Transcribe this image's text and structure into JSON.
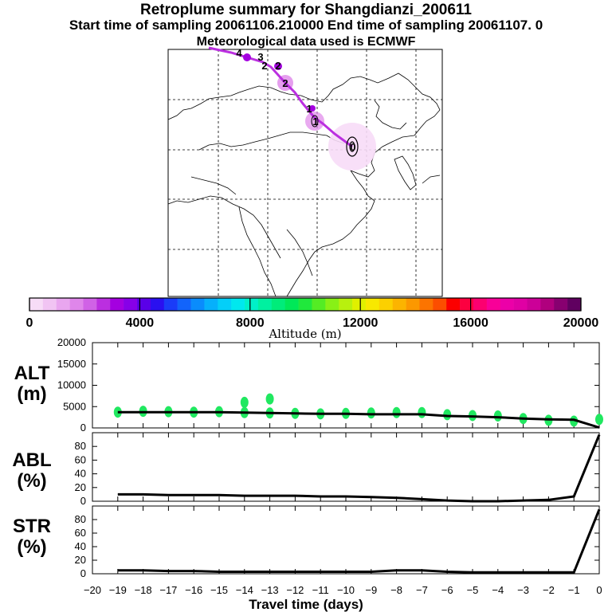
{
  "header": {
    "title": "Retroplume summary for Shangdianzi_200611",
    "sampling": "Start time of sampling 20061106.210000     End time of sampling 20061107.     0",
    "met": "Meteorological data used is ECMWF"
  },
  "map": {
    "track_labels": [
      "0",
      "1",
      "1",
      "2",
      "2",
      "3",
      "2",
      "4"
    ]
  },
  "colorbar": {
    "ticks": [
      "0",
      "4000",
      "8000",
      "12000",
      "16000",
      "20000"
    ],
    "label": "Altitude (m)",
    "colors": [
      "#f7dcf7",
      "#f1c4f3",
      "#e9a6ef",
      "#df86ea",
      "#d062e6",
      "#bb2fe0",
      "#a400e0",
      "#8700e8",
      "#5a00e8",
      "#2a10f0",
      "#1a3cf8",
      "#1264fb",
      "#0a8cfc",
      "#06b0fb",
      "#04cff8",
      "#00e8ee",
      "#00f0c8",
      "#00f0a0",
      "#00ec7a",
      "#00e858",
      "#20e83c",
      "#54ec24",
      "#88f016",
      "#b8f00e",
      "#e0f000",
      "#f8e800",
      "#fcd000",
      "#fcb400",
      "#fc9800",
      "#fc7400",
      "#fc4e00",
      "#fc0000",
      "#fc0040",
      "#fc0070",
      "#f80098",
      "#ec00a8",
      "#e000a4",
      "#cc0098",
      "#b0007e",
      "#880070",
      "#600060"
    ]
  },
  "chart_data": [
    {
      "type": "line",
      "panel": "ALT",
      "ylabel": "ALT\n(m)",
      "ylabel_lines": [
        "ALT",
        "(m)"
      ],
      "ylim": [
        0,
        20000
      ],
      "yticks": [
        "20000",
        "15000",
        "10000",
        "5000",
        "0"
      ],
      "ytick_values": [
        20000,
        15000,
        10000,
        5000,
        0
      ],
      "xlim": [
        -20,
        0
      ],
      "x": [
        -19,
        -18,
        -17,
        -16,
        -15,
        -14,
        -13,
        -12,
        -11,
        -10,
        -9,
        -8,
        -7,
        -6,
        -5,
        -4,
        -3,
        -2,
        -1,
        0
      ],
      "values": [
        3700,
        3700,
        3700,
        3700,
        3700,
        3600,
        3500,
        3400,
        3300,
        3300,
        3200,
        3200,
        3200,
        2800,
        2700,
        2500,
        2200,
        2000,
        1900,
        100
      ],
      "scatter": [
        {
          "x": -19,
          "y": 3700
        },
        {
          "x": -18,
          "y": 3900
        },
        {
          "x": -17,
          "y": 3800
        },
        {
          "x": -16,
          "y": 3700
        },
        {
          "x": -15,
          "y": 3800
        },
        {
          "x": -14,
          "y": 3600
        },
        {
          "x": -13,
          "y": 3500
        },
        {
          "x": -12,
          "y": 3400
        },
        {
          "x": -11,
          "y": 3300
        },
        {
          "x": -10,
          "y": 3400
        },
        {
          "x": -9,
          "y": 3500
        },
        {
          "x": -8,
          "y": 3600
        },
        {
          "x": -7,
          "y": 3600
        },
        {
          "x": -6,
          "y": 3100
        },
        {
          "x": -5,
          "y": 2900
        },
        {
          "x": -4,
          "y": 2800
        },
        {
          "x": -3,
          "y": 2200
        },
        {
          "x": -2,
          "y": 1800
        },
        {
          "x": -1,
          "y": 1600
        },
        {
          "x": 0,
          "y": 2000
        },
        {
          "x": -14,
          "y": 6000
        },
        {
          "x": -13,
          "y": 6800
        }
      ]
    },
    {
      "type": "line",
      "panel": "ABL",
      "ylabel": "ABL\n(%)",
      "ylabel_lines": [
        "ABL",
        "(%)"
      ],
      "ylim": [
        0,
        100
      ],
      "yticks": [
        "80",
        "60",
        "40",
        "20",
        "0"
      ],
      "ytick_values": [
        80,
        60,
        40,
        20,
        0
      ],
      "xlim": [
        -20,
        0
      ],
      "x": [
        -19,
        -18,
        -17,
        -16,
        -15,
        -14,
        -13,
        -12,
        -11,
        -10,
        -9,
        -8,
        -7,
        -6,
        -5,
        -4,
        -3,
        -2,
        -1,
        0
      ],
      "values": [
        10,
        10,
        9,
        9,
        9,
        8,
        8,
        8,
        7,
        7,
        6,
        5,
        3,
        1,
        0,
        0,
        1,
        2,
        7,
        97
      ]
    },
    {
      "type": "line",
      "panel": "STR",
      "ylabel": "STR\n(%)",
      "ylabel_lines": [
        "STR",
        "(%)"
      ],
      "ylim": [
        0,
        100
      ],
      "yticks": [
        "80",
        "60",
        "40",
        "20",
        "0"
      ],
      "ytick_values": [
        80,
        60,
        40,
        20,
        0
      ],
      "xlim": [
        -20,
        0
      ],
      "x": [
        -19,
        -18,
        -17,
        -16,
        -15,
        -14,
        -13,
        -12,
        -11,
        -10,
        -9,
        -8,
        -7,
        -6,
        -5,
        -4,
        -3,
        -2,
        -1,
        0
      ],
      "values": [
        5,
        5,
        4,
        4,
        3,
        3,
        3,
        3,
        3,
        3,
        3,
        5,
        5,
        3,
        2,
        2,
        2,
        2,
        2,
        95
      ],
      "xlabel": "Travel time (days)",
      "xticks": [
        "−20",
        "−19",
        "−18",
        "−17",
        "−16",
        "−15",
        "−14",
        "−13",
        "−12",
        "−11",
        "−10",
        "−9",
        "−8",
        "−7",
        "−6",
        "−5",
        "−4",
        "−3",
        "−2",
        "−1",
        "0"
      ]
    }
  ]
}
